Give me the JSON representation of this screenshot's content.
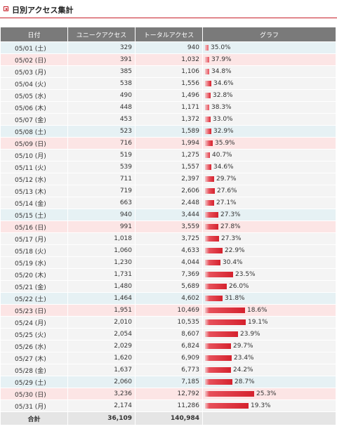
{
  "page_title": "日別アクセス集計",
  "columns": {
    "date": "日付",
    "unique": "ユニークアクセス",
    "total": "トータルアクセス",
    "graph": "グラフ"
  },
  "colors": {
    "accent": "#c8202a",
    "header_bg": "#7a7a7a",
    "saturday_bg": "#e6f1f4",
    "sunday_bg": "#fce5e5",
    "weekday_bg": "#f4f4f4",
    "bar": "#d5222e"
  },
  "rows": [
    {
      "date": "05/01 (土)",
      "unique": "329",
      "total": "940",
      "pct": "35.0%",
      "day": "sat"
    },
    {
      "date": "05/02 (日)",
      "unique": "391",
      "total": "1,032",
      "pct": "37.9%",
      "day": "sun"
    },
    {
      "date": "05/03 (月)",
      "unique": "385",
      "total": "1,106",
      "pct": "34.8%",
      "day": "wk"
    },
    {
      "date": "05/04 (火)",
      "unique": "538",
      "total": "1,556",
      "pct": "34.6%",
      "day": "wk"
    },
    {
      "date": "05/05 (水)",
      "unique": "490",
      "total": "1,496",
      "pct": "32.8%",
      "day": "wk"
    },
    {
      "date": "05/06 (木)",
      "unique": "448",
      "total": "1,171",
      "pct": "38.3%",
      "day": "wk"
    },
    {
      "date": "05/07 (金)",
      "unique": "453",
      "total": "1,372",
      "pct": "33.0%",
      "day": "wk"
    },
    {
      "date": "05/08 (土)",
      "unique": "523",
      "total": "1,589",
      "pct": "32.9%",
      "day": "sat"
    },
    {
      "date": "05/09 (日)",
      "unique": "716",
      "total": "1,994",
      "pct": "35.9%",
      "day": "sun"
    },
    {
      "date": "05/10 (月)",
      "unique": "519",
      "total": "1,275",
      "pct": "40.7%",
      "day": "wk"
    },
    {
      "date": "05/11 (火)",
      "unique": "539",
      "total": "1,557",
      "pct": "34.6%",
      "day": "wk"
    },
    {
      "date": "05/12 (水)",
      "unique": "711",
      "total": "2,397",
      "pct": "29.7%",
      "day": "wk"
    },
    {
      "date": "05/13 (木)",
      "unique": "719",
      "total": "2,606",
      "pct": "27.6%",
      "day": "wk"
    },
    {
      "date": "05/14 (金)",
      "unique": "663",
      "total": "2,448",
      "pct": "27.1%",
      "day": "wk"
    },
    {
      "date": "05/15 (土)",
      "unique": "940",
      "total": "3,444",
      "pct": "27.3%",
      "day": "sat"
    },
    {
      "date": "05/16 (日)",
      "unique": "991",
      "total": "3,559",
      "pct": "27.8%",
      "day": "sun"
    },
    {
      "date": "05/17 (月)",
      "unique": "1,018",
      "total": "3,725",
      "pct": "27.3%",
      "day": "wk"
    },
    {
      "date": "05/18 (火)",
      "unique": "1,060",
      "total": "4,633",
      "pct": "22.9%",
      "day": "wk"
    },
    {
      "date": "05/19 (水)",
      "unique": "1,230",
      "total": "4,044",
      "pct": "30.4%",
      "day": "wk"
    },
    {
      "date": "05/20 (木)",
      "unique": "1,731",
      "total": "7,369",
      "pct": "23.5%",
      "day": "wk"
    },
    {
      "date": "05/21 (金)",
      "unique": "1,480",
      "total": "5,689",
      "pct": "26.0%",
      "day": "wk"
    },
    {
      "date": "05/22 (土)",
      "unique": "1,464",
      "total": "4,602",
      "pct": "31.8%",
      "day": "sat"
    },
    {
      "date": "05/23 (日)",
      "unique": "1,951",
      "total": "10,469",
      "pct": "18.6%",
      "day": "sun"
    },
    {
      "date": "05/24 (月)",
      "unique": "2,010",
      "total": "10,535",
      "pct": "19.1%",
      "day": "wk"
    },
    {
      "date": "05/25 (火)",
      "unique": "2,054",
      "total": "8,607",
      "pct": "23.9%",
      "day": "wk"
    },
    {
      "date": "05/26 (水)",
      "unique": "2,029",
      "total": "6,824",
      "pct": "29.7%",
      "day": "wk"
    },
    {
      "date": "05/27 (木)",
      "unique": "1,620",
      "total": "6,909",
      "pct": "23.4%",
      "day": "wk"
    },
    {
      "date": "05/28 (金)",
      "unique": "1,637",
      "total": "6,773",
      "pct": "24.2%",
      "day": "wk"
    },
    {
      "date": "05/29 (土)",
      "unique": "2,060",
      "total": "7,185",
      "pct": "28.7%",
      "day": "sat"
    },
    {
      "date": "05/30 (日)",
      "unique": "3,236",
      "total": "12,792",
      "pct": "25.3%",
      "day": "sun"
    },
    {
      "date": "05/31 (月)",
      "unique": "2,174",
      "total": "11,286",
      "pct": "19.3%",
      "day": "wk"
    }
  ],
  "totals": {
    "label": "合計",
    "unique": "36,109",
    "total": "140,984"
  }
}
